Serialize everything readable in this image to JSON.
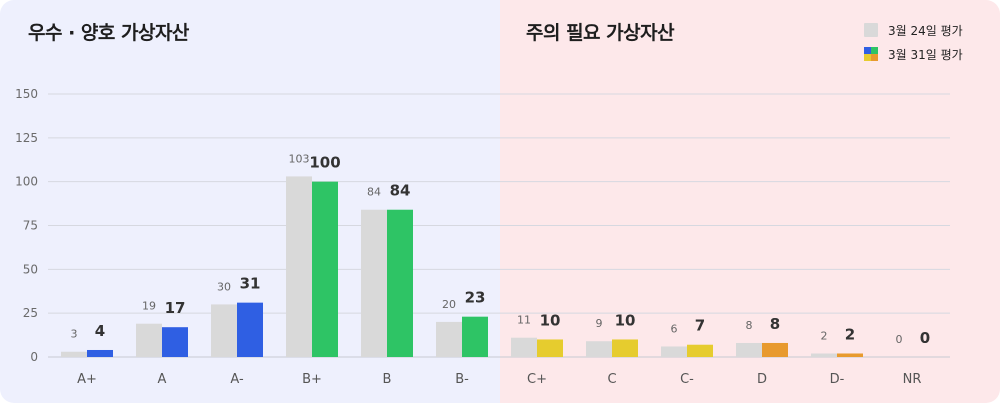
{
  "sections": {
    "left_title": "우수 · 양호 가상자산",
    "right_title": "주의 필요 가상자산"
  },
  "legend": {
    "prev": "3월 24일 평가",
    "curr": "3월 31일 평가"
  },
  "colors": {
    "prev": "#d9d9d9",
    "blue": "#2f5fe3",
    "green": "#2ec465",
    "yellow": "#e6cc2e",
    "orange": "#e89a2e",
    "grid": "#d6d8e0",
    "left_bg": "#eef0fd",
    "right_bg": "#fde8ea"
  },
  "chart_data": {
    "type": "bar",
    "categories": [
      "A+",
      "A",
      "A-",
      "B+",
      "B",
      "B-",
      "C+",
      "C",
      "C-",
      "D",
      "D-",
      "NR"
    ],
    "series": [
      {
        "name": "3월 24일 평가",
        "values": [
          3,
          19,
          30,
          103,
          84,
          20,
          11,
          9,
          6,
          8,
          2,
          0
        ]
      },
      {
        "name": "3월 31일 평가",
        "values": [
          4,
          17,
          31,
          100,
          84,
          23,
          10,
          10,
          7,
          8,
          2,
          0
        ]
      }
    ],
    "bar_colors": [
      "blue",
      "blue",
      "blue",
      "green",
      "green",
      "green",
      "yellow",
      "yellow",
      "yellow",
      "orange",
      "orange",
      "orange"
    ],
    "yticks": [
      0,
      25,
      50,
      75,
      100,
      125,
      150
    ],
    "ylim": [
      0,
      150
    ],
    "grid": true,
    "legend_position": "top-right"
  }
}
